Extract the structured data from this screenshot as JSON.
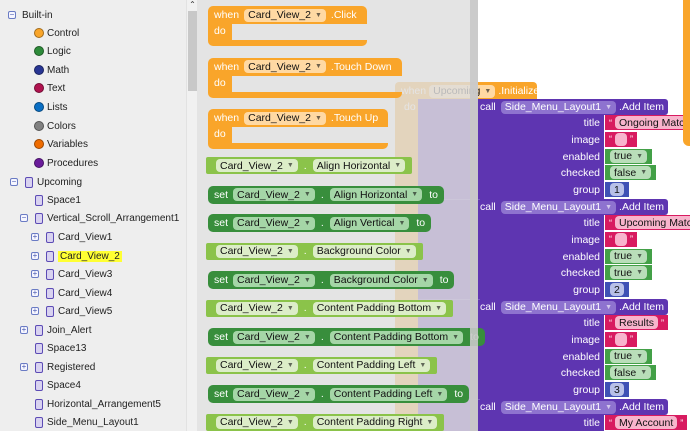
{
  "sidebar": {
    "items": [
      {
        "label": "Built-in",
        "depth": 0,
        "expander": "expanded",
        "icon": null
      },
      {
        "label": "Control",
        "depth": 1,
        "icon": "dot",
        "color": "#f9a52a"
      },
      {
        "label": "Logic",
        "depth": 1,
        "icon": "dot",
        "color": "#2e8b3a"
      },
      {
        "label": "Math",
        "depth": 1,
        "icon": "dot",
        "color": "#283593"
      },
      {
        "label": "Text",
        "depth": 1,
        "icon": "dot",
        "color": "#b0124f"
      },
      {
        "label": "Lists",
        "depth": 1,
        "icon": "dot",
        "color": "#0a6fc4"
      },
      {
        "label": "Colors",
        "depth": 1,
        "icon": "dot",
        "color": "#808080"
      },
      {
        "label": "Variables",
        "depth": 1,
        "icon": "dot",
        "color": "#ef6c00"
      },
      {
        "label": "Procedures",
        "depth": 1,
        "icon": "dot",
        "color": "#6a1b9a"
      },
      {
        "label": "Upcoming",
        "depth": 0,
        "expander": "expanded",
        "icon": "screen-icon"
      },
      {
        "label": "Space1",
        "depth": 1,
        "icon": "space-icon"
      },
      {
        "label": "Vertical_Scroll_Arrangement1",
        "depth": 1,
        "expander": "expanded",
        "icon": "vertical-arrangement-icon"
      },
      {
        "label": "Card_View1",
        "depth": 2,
        "expander": "collapsed",
        "icon": "card-view-icon"
      },
      {
        "label": "Card_View_2",
        "depth": 2,
        "expander": "collapsed",
        "icon": "card-view-icon",
        "highlighted": true
      },
      {
        "label": "Card_View3",
        "depth": 2,
        "expander": "collapsed",
        "icon": "card-view-icon"
      },
      {
        "label": "Card_View4",
        "depth": 2,
        "expander": "collapsed",
        "icon": "card-view-icon"
      },
      {
        "label": "Card_View5",
        "depth": 2,
        "expander": "collapsed",
        "icon": "card-view-icon"
      },
      {
        "label": "Join_Alert",
        "depth": 1,
        "expander": "collapsed",
        "icon": "vertical-arrangement-icon"
      },
      {
        "label": "Space13",
        "depth": 1,
        "icon": "space-icon"
      },
      {
        "label": "Registered",
        "depth": 1,
        "expander": "collapsed",
        "icon": "vertical-arrangement-icon"
      },
      {
        "label": "Space4",
        "depth": 1,
        "icon": "space-icon"
      },
      {
        "label": "Horizontal_Arrangement5",
        "depth": 1,
        "icon": "horizontal-arrangement-icon"
      },
      {
        "label": "Side_Menu_Layout1",
        "depth": 1,
        "icon": "side-menu-icon"
      }
    ]
  },
  "flyout": {
    "component": "Card_View_2",
    "events": [
      {
        "when": "when",
        "event": ".Click",
        "do": "do"
      },
      {
        "when": "when",
        "event": ".Touch Down",
        "do": "do"
      },
      {
        "when": "when",
        "event": ".Touch Up",
        "do": "do"
      }
    ],
    "set_label": "set",
    "to_label": "to",
    "dot": ".",
    "properties": [
      {
        "kind": "get",
        "prop": "Align Horizontal"
      },
      {
        "kind": "set",
        "prop": "Align Horizontal"
      },
      {
        "kind": "set",
        "prop": "Align Vertical"
      },
      {
        "kind": "get",
        "prop": "Background Color"
      },
      {
        "kind": "set",
        "prop": "Background Color"
      },
      {
        "kind": "get",
        "prop": "Content Padding Bottom"
      },
      {
        "kind": "set",
        "prop": "Content Padding Bottom"
      },
      {
        "kind": "get",
        "prop": "Content Padding Left"
      },
      {
        "kind": "set",
        "prop": "Content Padding Left"
      },
      {
        "kind": "get",
        "prop": "Content Padding Right"
      }
    ]
  },
  "workspace": {
    "init": {
      "when": "when",
      "component": "Upcoming",
      "event": ".Initialize",
      "do": "do"
    },
    "call_label": "call",
    "component": "Side_Menu_Layout1",
    "method": ".Add Item",
    "arg_labels": [
      "title",
      "image",
      "enabled",
      "checked",
      "group"
    ],
    "items": [
      {
        "title": "Ongoing Match",
        "enabled": "true",
        "checked": "false",
        "group": "1"
      },
      {
        "title": "Upcoming Match",
        "enabled": "true",
        "checked": "true",
        "group": "2"
      },
      {
        "title": "Results",
        "enabled": "true",
        "checked": "false",
        "group": "3"
      },
      {
        "title": "My Account"
      }
    ]
  },
  "colors": {
    "event": "#f9a52a",
    "getter": "#8bc34a",
    "setter": "#388e3c",
    "method": "#5e35b1",
    "text": "#d81b60",
    "logic": "#43a047",
    "math": "#3f51b5"
  }
}
